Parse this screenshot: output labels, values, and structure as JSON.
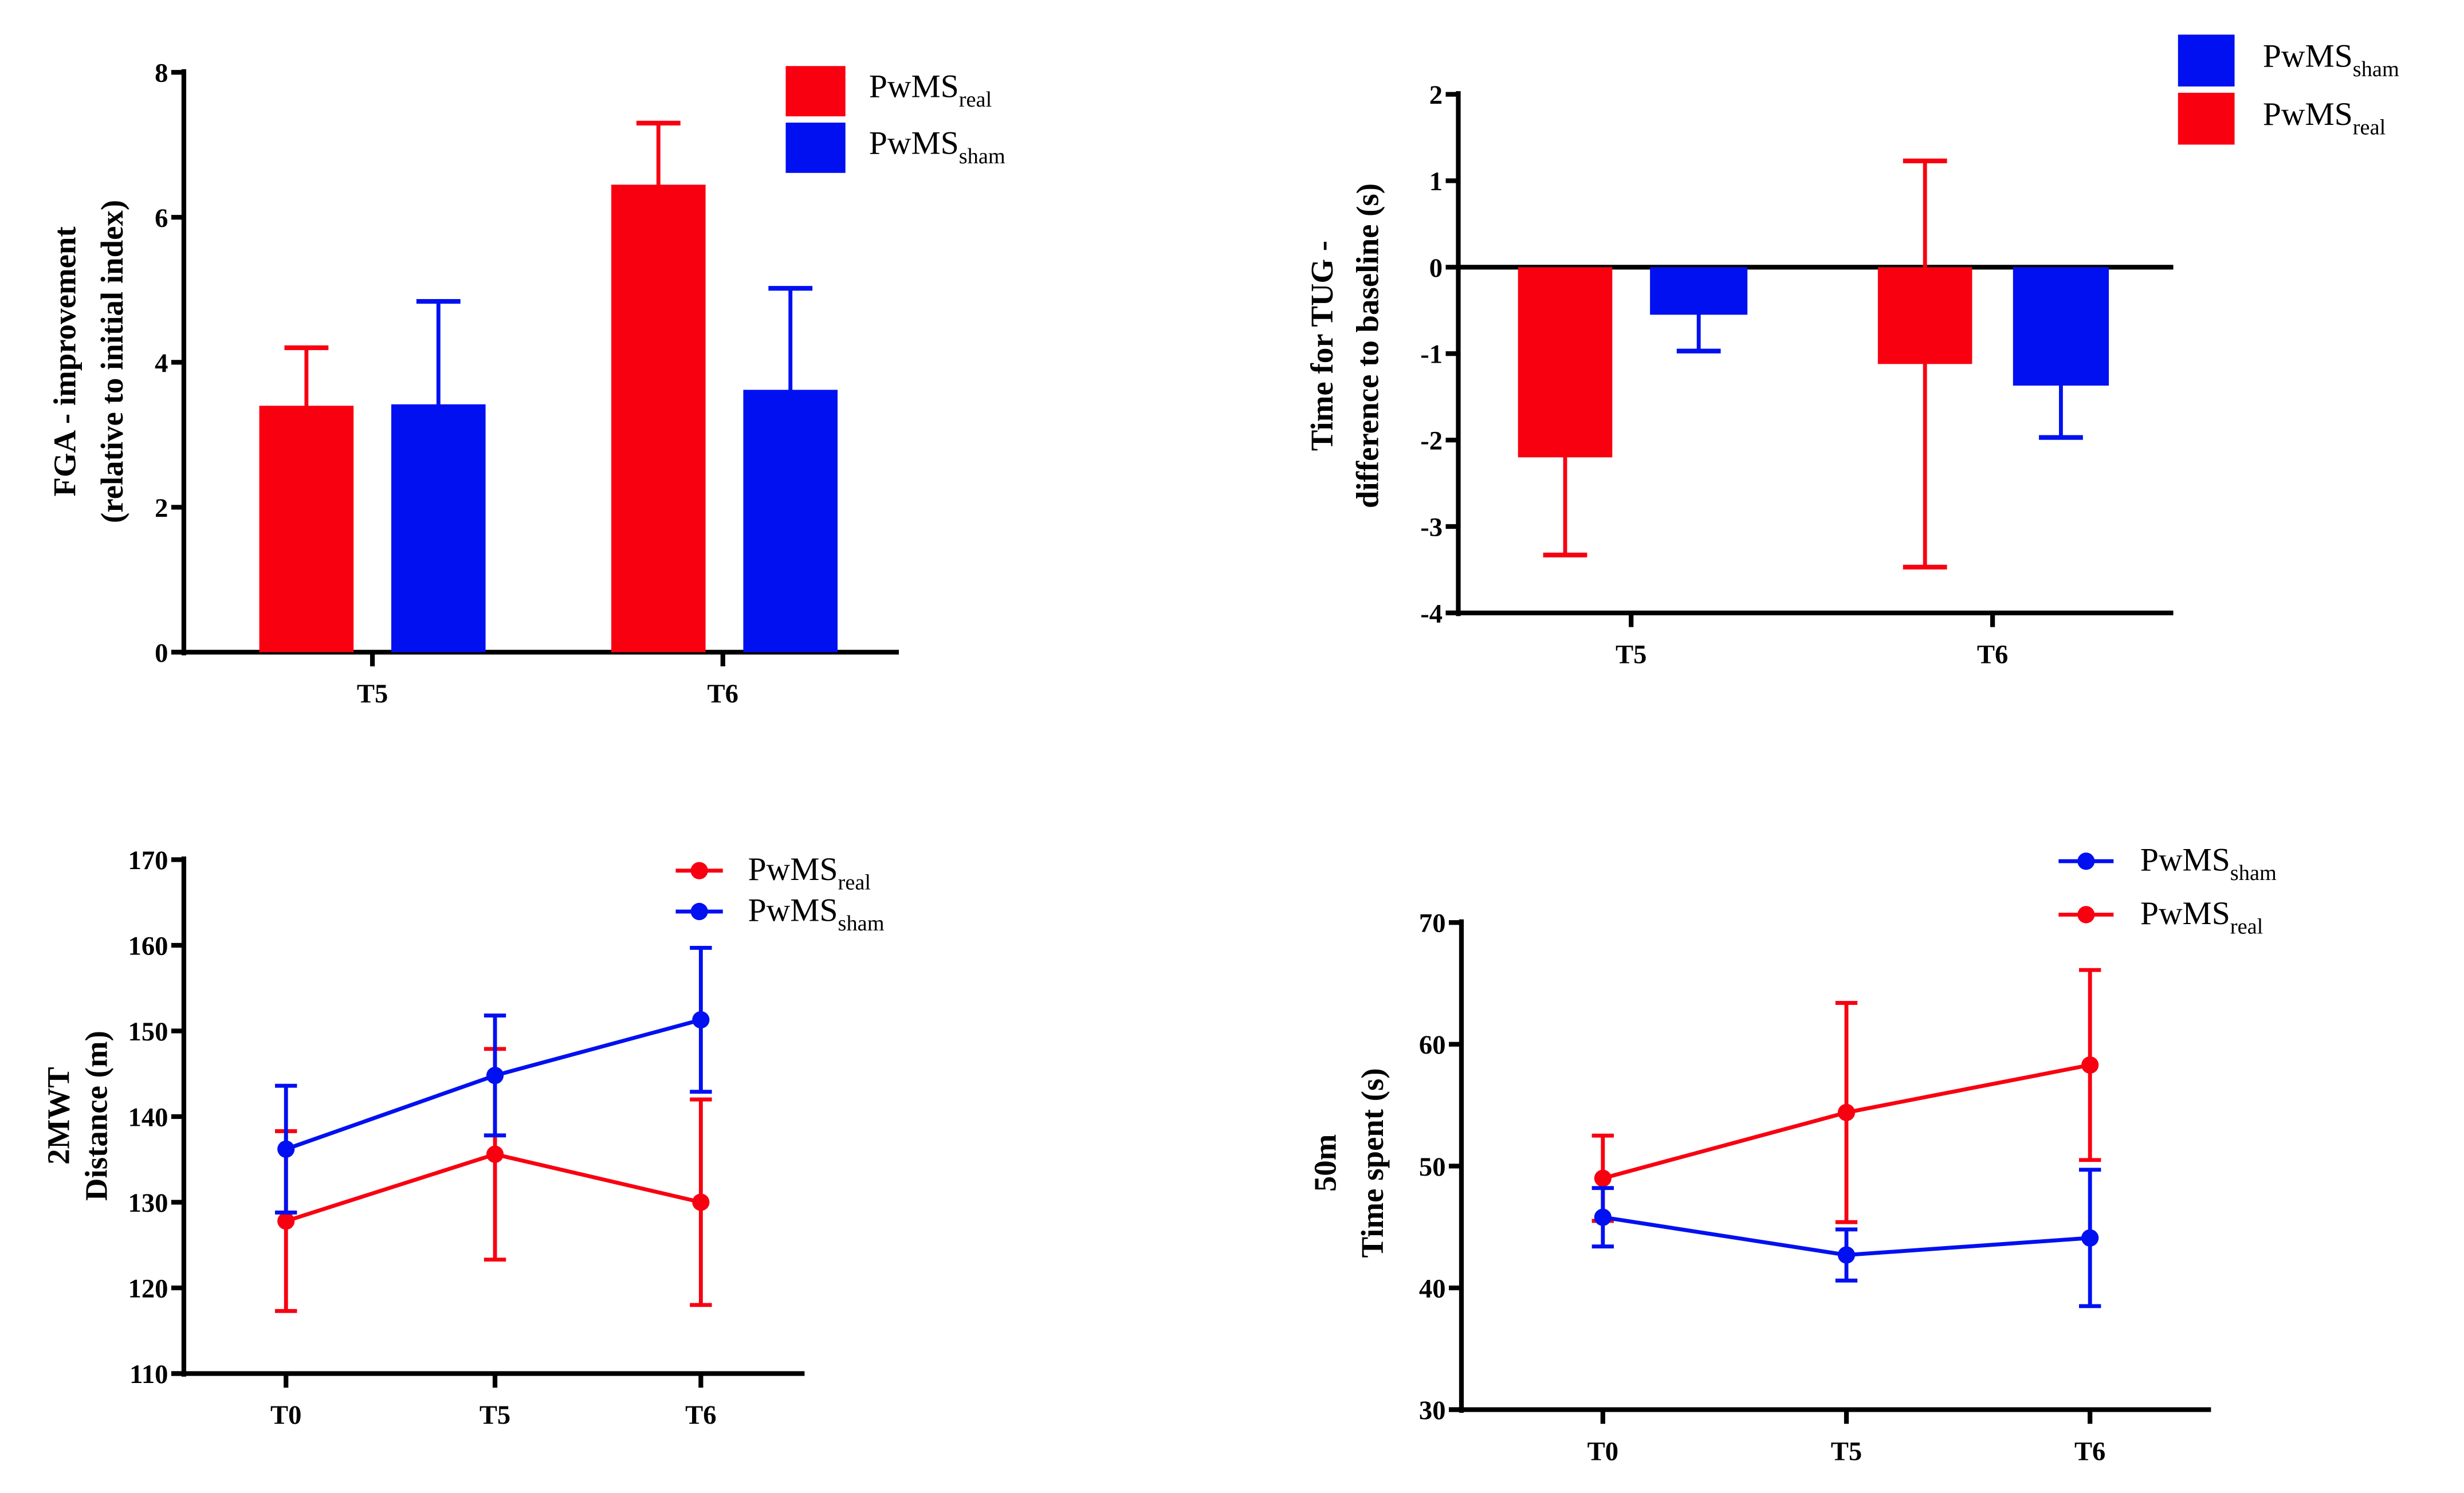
{
  "colors": {
    "real": "#f80010",
    "sham": "#0010f0",
    "axis": "#000000"
  },
  "chart_data": [
    {
      "type": "bar",
      "ylabel": [
        "FGA - improvement",
        "(relative to initial index)"
      ],
      "categories": [
        "T5",
        "T6"
      ],
      "ylim": [
        0,
        8
      ],
      "yticks": [
        0,
        2,
        4,
        6,
        8
      ],
      "legend": [
        {
          "base": "PwMS",
          "sub": "real",
          "key": "real"
        },
        {
          "base": "PwMS",
          "sub": "sham",
          "key": "sham"
        }
      ],
      "legend_position": "top-right",
      "series": [
        {
          "name": "PwMS real",
          "key": "real",
          "values": [
            3.4,
            6.45
          ],
          "errors": [
            0.8,
            0.85
          ]
        },
        {
          "name": "PwMS sham",
          "key": "sham",
          "values": [
            3.42,
            3.62
          ],
          "errors": [
            1.42,
            1.4
          ]
        }
      ]
    },
    {
      "type": "bar",
      "ylabel": [
        "Time for TUG -",
        "difference to baseline (s)"
      ],
      "categories": [
        "T5",
        "T6"
      ],
      "ylim": [
        -4,
        2
      ],
      "yticks": [
        -4,
        -3,
        -2,
        -1,
        0,
        1,
        2
      ],
      "legend": [
        {
          "base": "PwMS",
          "sub": "sham",
          "key": "sham"
        },
        {
          "base": "PwMS",
          "sub": "real",
          "key": "real"
        }
      ],
      "legend_position": "top-right",
      "series": [
        {
          "name": "PwMS real",
          "key": "real",
          "values": [
            -2.2,
            -1.12
          ],
          "errors": [
            1.13,
            2.35
          ]
        },
        {
          "name": "PwMS sham",
          "key": "sham",
          "values": [
            -0.55,
            -1.37
          ],
          "errors": [
            0.42,
            0.6
          ]
        }
      ]
    },
    {
      "type": "line",
      "ylabel": [
        "2MWT",
        "Distance (m)"
      ],
      "categories": [
        "T0",
        "T5",
        "T6"
      ],
      "ylim": [
        110,
        170
      ],
      "yticks": [
        110,
        120,
        130,
        140,
        150,
        160,
        170
      ],
      "legend": [
        {
          "base": "PwMS",
          "sub": "real",
          "key": "real"
        },
        {
          "base": "PwMS",
          "sub": "sham",
          "key": "sham"
        }
      ],
      "legend_position": "top-right",
      "series": [
        {
          "name": "PwMS real",
          "key": "real",
          "values": [
            127.8,
            135.6,
            130.0
          ],
          "errors": [
            10.5,
            12.3,
            12.0
          ]
        },
        {
          "name": "PwMS sham",
          "key": "sham",
          "values": [
            136.2,
            144.8,
            151.3
          ],
          "errors": [
            7.4,
            7.0,
            8.4
          ]
        }
      ]
    },
    {
      "type": "line",
      "ylabel": [
        "50m",
        "Time spent (s)"
      ],
      "categories": [
        "T0",
        "T5",
        "T6"
      ],
      "ylim": [
        30,
        70
      ],
      "yticks": [
        30,
        40,
        50,
        60,
        70
      ],
      "legend": [
        {
          "base": "PwMS",
          "sub": "sham",
          "key": "sham"
        },
        {
          "base": "PwMS",
          "sub": "real",
          "key": "real"
        }
      ],
      "legend_position": "top-right",
      "series": [
        {
          "name": "PwMS real",
          "key": "real",
          "values": [
            49.0,
            54.4,
            58.3
          ],
          "errors": [
            3.5,
            9.0,
            7.8
          ]
        },
        {
          "name": "PwMS sham",
          "key": "sham",
          "values": [
            45.8,
            42.7,
            44.1
          ],
          "errors": [
            2.4,
            2.1,
            5.6
          ]
        }
      ]
    }
  ]
}
